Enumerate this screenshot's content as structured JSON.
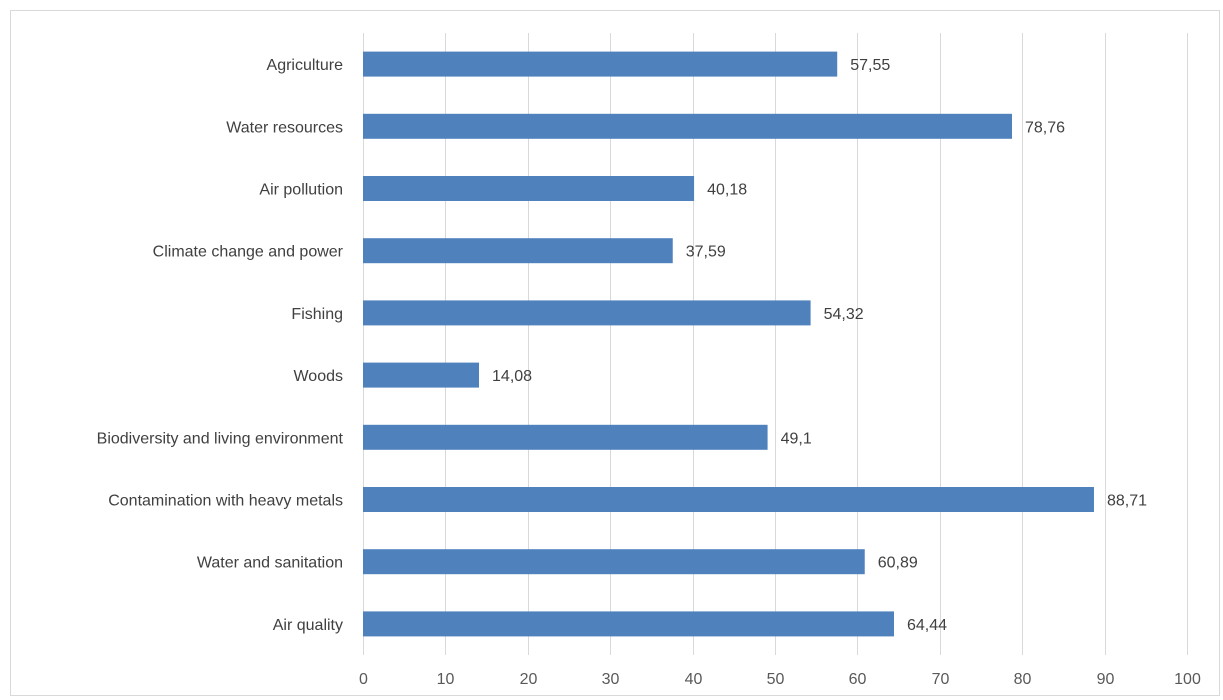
{
  "chart_data": {
    "type": "bar",
    "orientation": "horizontal",
    "title": "",
    "xlabel": "",
    "ylabel": "",
    "categories": [
      "Agriculture",
      "Water resources",
      "Air pollution",
      "Climate change and power",
      "Fishing",
      "Woods",
      "Biodiversity and living environment",
      "Contamination with heavy metals",
      "Water and sanitation",
      "Air quality"
    ],
    "values": [
      57.55,
      78.76,
      40.18,
      37.59,
      54.32,
      14.08,
      49.1,
      88.71,
      60.89,
      64.44
    ],
    "value_labels": [
      "57,55",
      "78,76",
      "40,18",
      "37,59",
      "54,32",
      "14,08",
      "49,1",
      "88,71",
      "60,89",
      "64,44"
    ],
    "xlim": [
      0,
      100
    ],
    "xticks": [
      0,
      10,
      20,
      30,
      40,
      50,
      60,
      70,
      80,
      90,
      100
    ],
    "grid": "vertical",
    "legend": "none",
    "bar_color": "#4f81bd"
  }
}
